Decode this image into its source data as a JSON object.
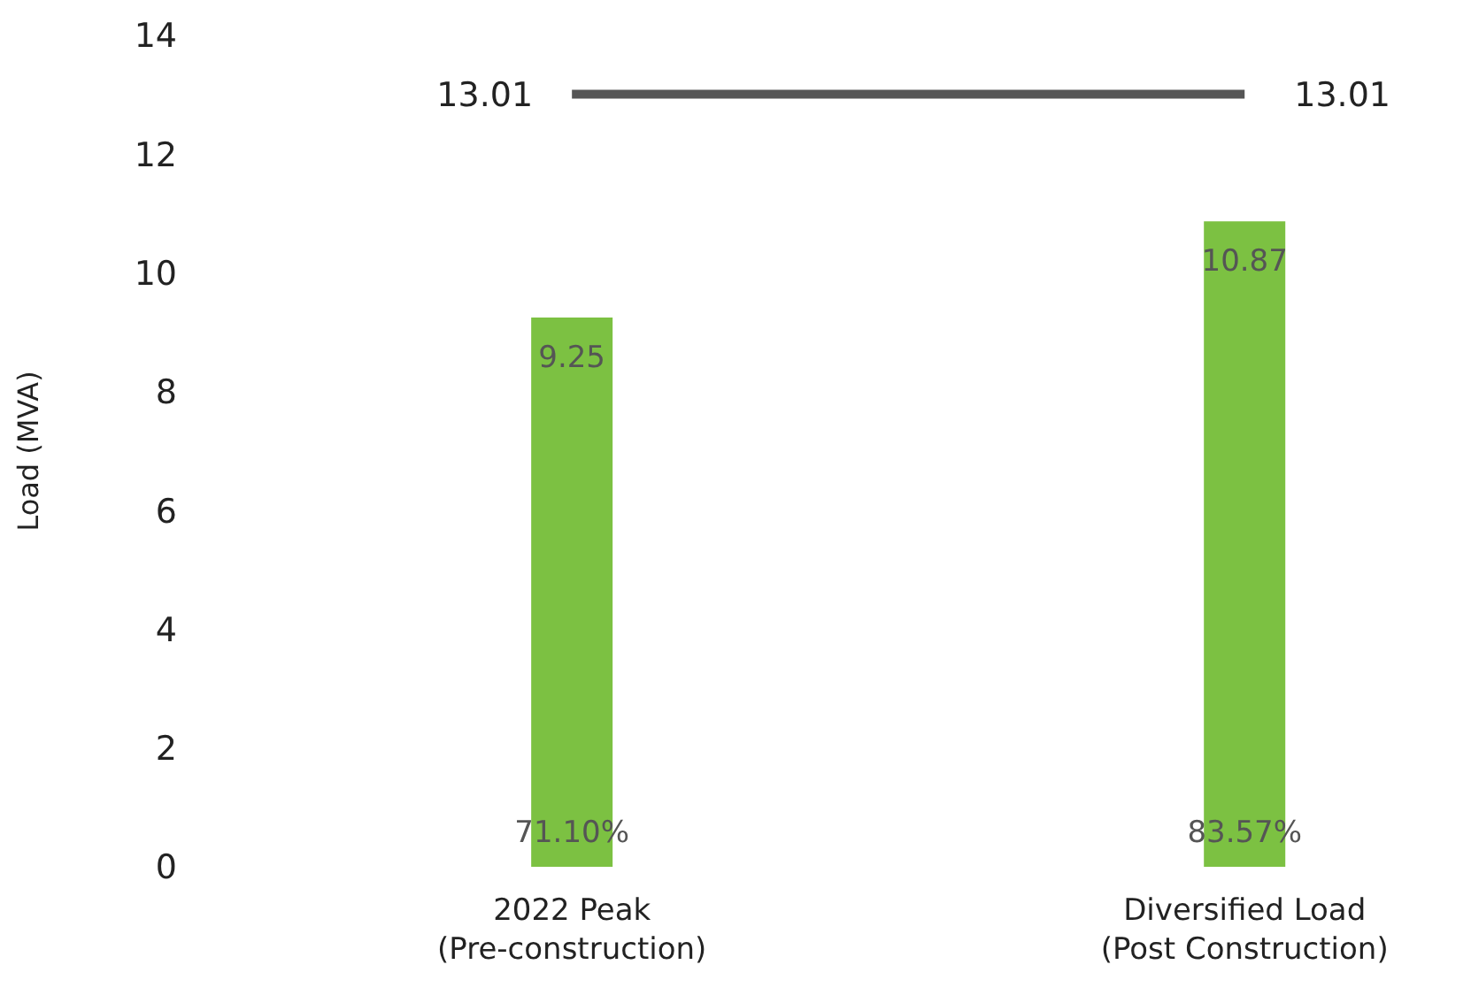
{
  "chart_data": {
    "type": "bar",
    "ylabel": "Load (MVA)",
    "categories": [
      "2022 Peak\n(Pre-construction)",
      "Diversified Load\n(Post Construction)"
    ],
    "series": [
      {
        "color": "#7cc142",
        "values": [
          9.25,
          10.87
        ]
      },
      {
        "type": "line",
        "color": "#555555",
        "values": [
          13.01,
          13.01
        ]
      }
    ],
    "ylim": [
      0,
      14
    ],
    "yticks": [
      0,
      2,
      4,
      6,
      8,
      10,
      12,
      14
    ],
    "grid": false,
    "legend": false,
    "data_labels": true,
    "marker": "none",
    "annotations": [
      "71.10%",
      "83.57%"
    ]
  }
}
